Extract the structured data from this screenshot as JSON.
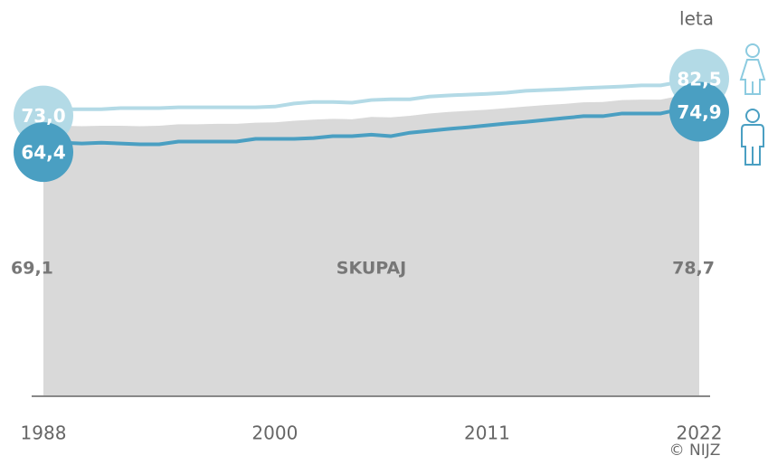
{
  "chart_data": {
    "type": "line",
    "unit_label": "leta",
    "source": "© NIJZ",
    "x": [
      1988,
      1989,
      1990,
      1991,
      1992,
      1993,
      1994,
      1995,
      1996,
      1997,
      1998,
      1999,
      2000,
      2001,
      2002,
      2003,
      2004,
      2005,
      2006,
      2007,
      2008,
      2009,
      2010,
      2011,
      2012,
      2013,
      2014,
      2015,
      2016,
      2017,
      2018,
      2019,
      2020,
      2021,
      2022
    ],
    "xlim": [
      1988,
      2022
    ],
    "xticks": [
      1988,
      2000,
      2011,
      2022
    ],
    "ylim": [
      0,
      103
    ],
    "series": [
      {
        "color": "#b3dae6",
        "values": [
          73.0,
          74.6,
          74.6,
          74.6,
          74.9,
          74.9,
          74.9,
          75.1,
          75.1,
          75.1,
          75.1,
          75.1,
          75.3,
          76.1,
          76.5,
          76.5,
          76.3,
          77.0,
          77.2,
          77.2,
          77.9,
          78.2,
          78.4,
          78.6,
          78.9,
          79.4,
          79.6,
          79.8,
          80.1,
          80.3,
          80.5,
          80.8,
          80.8,
          81.7,
          82.5
        ],
        "value_labels": [
          "73,0",
          null,
          null,
          null,
          null,
          null,
          null,
          null,
          null,
          null,
          null,
          null,
          null,
          null,
          null,
          null,
          null,
          null,
          null,
          null,
          null,
          null,
          null,
          null,
          null,
          null,
          null,
          null,
          null,
          null,
          null,
          null,
          null,
          null,
          "82,5"
        ]
      },
      {
        "color": "#4a9fc2",
        "values": [
          64.4,
          65.9,
          65.7,
          65.9,
          65.7,
          65.5,
          65.5,
          66.2,
          66.2,
          66.2,
          66.2,
          66.9,
          66.9,
          66.9,
          67.1,
          67.6,
          67.6,
          68.0,
          67.6,
          68.5,
          69.0,
          69.5,
          69.9,
          70.4,
          70.9,
          71.3,
          71.8,
          72.3,
          72.8,
          72.8,
          73.5,
          73.5,
          73.5,
          74.6,
          74.9
        ],
        "value_labels": [
          "64,4",
          null,
          null,
          null,
          null,
          null,
          null,
          null,
          null,
          null,
          null,
          null,
          null,
          null,
          null,
          null,
          null,
          null,
          null,
          null,
          null,
          null,
          null,
          null,
          null,
          null,
          null,
          null,
          null,
          null,
          null,
          null,
          null,
          null,
          "74,9"
        ]
      }
    ],
    "area": {
      "label": "SKUPAJ",
      "color": "#d9d9d9",
      "values": [
        69.1,
        70.3,
        70.2,
        70.3,
        70.3,
        70.2,
        70.3,
        70.7,
        70.7,
        70.8,
        70.8,
        71.1,
        71.2,
        71.6,
        71.9,
        72.1,
        72.0,
        72.6,
        72.5,
        72.9,
        73.5,
        73.9,
        74.2,
        74.5,
        74.9,
        75.3,
        75.7,
        76.0,
        76.4,
        76.5,
        77.0,
        77.1,
        77.1,
        78.1,
        78.7
      ],
      "value_labels": [
        "69,1",
        null,
        null,
        null,
        null,
        null,
        null,
        null,
        null,
        null,
        null,
        null,
        null,
        null,
        null,
        null,
        null,
        null,
        null,
        null,
        null,
        null,
        null,
        null,
        null,
        null,
        null,
        null,
        null,
        null,
        null,
        null,
        null,
        null,
        "78,7"
      ]
    }
  }
}
